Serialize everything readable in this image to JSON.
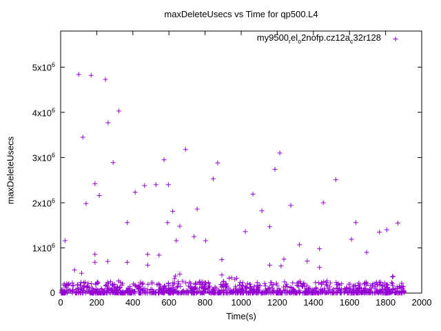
{
  "title": "maxDeleteUsecs vs Time for qp500.L4",
  "legend": {
    "raw_name": "my9500_rel_o2nofp.cz12a_c32r128",
    "parts": [
      {
        "text": "my9500"
      },
      {
        "text": "r",
        "sub": true
      },
      {
        "text": "el"
      },
      {
        "text": "o",
        "sub": true
      },
      {
        "text": "2nofp.cz12a"
      },
      {
        "text": "c",
        "sub": true
      },
      {
        "text": "32r128"
      }
    ],
    "marker": "plus"
  },
  "axes": {
    "xlabel": "Time(s)",
    "ylabel": "maxDeleteUsecs",
    "x_ticks": [
      0,
      200,
      400,
      600,
      800,
      1000,
      1200,
      1400,
      1600,
      1800,
      2000
    ],
    "y_ticks": [
      {
        "value": 0,
        "base": "0",
        "exp": ""
      },
      {
        "value": 1000000,
        "base": "1x10",
        "exp": "6"
      },
      {
        "value": 2000000,
        "base": "2x10",
        "exp": "6"
      },
      {
        "value": 3000000,
        "base": "3x10",
        "exp": "6"
      },
      {
        "value": 4000000,
        "base": "4x10",
        "exp": "6"
      },
      {
        "value": 5000000,
        "base": "5x10",
        "exp": "6"
      }
    ]
  },
  "colors": {
    "marker": "#9400D3",
    "axis": "#000000",
    "background": "#ffffff"
  },
  "chart_data": {
    "type": "scatter",
    "title": "maxDeleteUsecs vs Time for qp500.L4",
    "xlabel": "Time(s)",
    "ylabel": "maxDeleteUsecs",
    "xlim": [
      0,
      2000
    ],
    "ylim": [
      0,
      5800000
    ],
    "grid": false,
    "legend_position": "top-right-inside",
    "series": [
      {
        "name": "my9500_rel_o2nofp.cz12a_c32r128",
        "color": "#9400D3",
        "marker": "plus",
        "outlier_points": [
          [
            100,
            4840000
          ],
          [
            169,
            4820000
          ],
          [
            248,
            4730000
          ],
          [
            323,
            4030000
          ],
          [
            263,
            3770000
          ],
          [
            123,
            3450000
          ],
          [
            291,
            2890000
          ],
          [
            573,
            2950000
          ],
          [
            190,
            2420000
          ],
          [
            465,
            2380000
          ],
          [
            528,
            2400000
          ],
          [
            597,
            2400000
          ],
          [
            413,
            2230000
          ],
          [
            214,
            2160000
          ],
          [
            141,
            1980000
          ],
          [
            621,
            1810000
          ],
          [
            369,
            1560000
          ],
          [
            592,
            1560000
          ],
          [
            660,
            1480000
          ],
          [
            24,
            1160000
          ],
          [
            641,
            1160000
          ],
          [
            190,
            860000
          ],
          [
            482,
            860000
          ],
          [
            545,
            840000
          ],
          [
            190,
            680000
          ],
          [
            261,
            700000
          ],
          [
            369,
            680000
          ],
          [
            482,
            620000
          ],
          [
            77,
            510000
          ],
          [
            116,
            440000
          ],
          [
            635,
            380000
          ],
          [
            692,
            3180000
          ],
          [
            870,
            2880000
          ],
          [
            1214,
            3100000
          ],
          [
            1187,
            2740000
          ],
          [
            845,
            2530000
          ],
          [
            1065,
            2190000
          ],
          [
            756,
            1860000
          ],
          [
            1115,
            1820000
          ],
          [
            1275,
            1940000
          ],
          [
            1158,
            1470000
          ],
          [
            1023,
            1360000
          ],
          [
            739,
            1250000
          ],
          [
            803,
            1160000
          ],
          [
            1323,
            1070000
          ],
          [
            893,
            740000
          ],
          [
            1237,
            750000
          ],
          [
            1158,
            620000
          ],
          [
            1221,
            600000
          ],
          [
            893,
            400000
          ],
          [
            947,
            340000
          ],
          [
            975,
            330000
          ],
          [
            660,
            420000
          ],
          [
            1524,
            2510000
          ],
          [
            1455,
            2000000
          ],
          [
            1635,
            1560000
          ],
          [
            1868,
            1550000
          ],
          [
            1766,
            1350000
          ],
          [
            1807,
            1400000
          ],
          [
            1611,
            1190000
          ],
          [
            1434,
            980000
          ],
          [
            1695,
            900000
          ],
          [
            1366,
            710000
          ],
          [
            1434,
            570000
          ],
          [
            1841,
            370000
          ],
          [
            1838,
            360000
          ],
          [
            1838,
            210000
          ],
          [
            321,
            270000
          ],
          [
            599,
            160000
          ],
          [
            630,
            320000
          ],
          [
            650,
            250000
          ],
          [
            933,
            330000
          ],
          [
            965,
            300000
          ],
          [
            903,
            260000
          ],
          [
            991,
            180000
          ],
          [
            1009,
            150000
          ],
          [
            1088,
            170000
          ],
          [
            747,
            220000
          ],
          [
            769,
            250000
          ],
          [
            676,
            260000
          ],
          [
            1326,
            260000
          ],
          [
            1364,
            170000
          ],
          [
            1457,
            250000
          ],
          [
            1476,
            270000
          ],
          [
            1649,
            160000
          ],
          [
            1658,
            120000
          ],
          [
            1724,
            110000
          ],
          [
            1740,
            140000
          ],
          [
            1880,
            130000
          ]
        ],
        "dense_band": {
          "note": "visually solid cluster of + markers hugging y=0 across the full time range",
          "count": 1100,
          "x_min": 2,
          "x_max": 1905,
          "y_max": 250000,
          "exponent": 3,
          "seed": 11
        }
      }
    ]
  }
}
